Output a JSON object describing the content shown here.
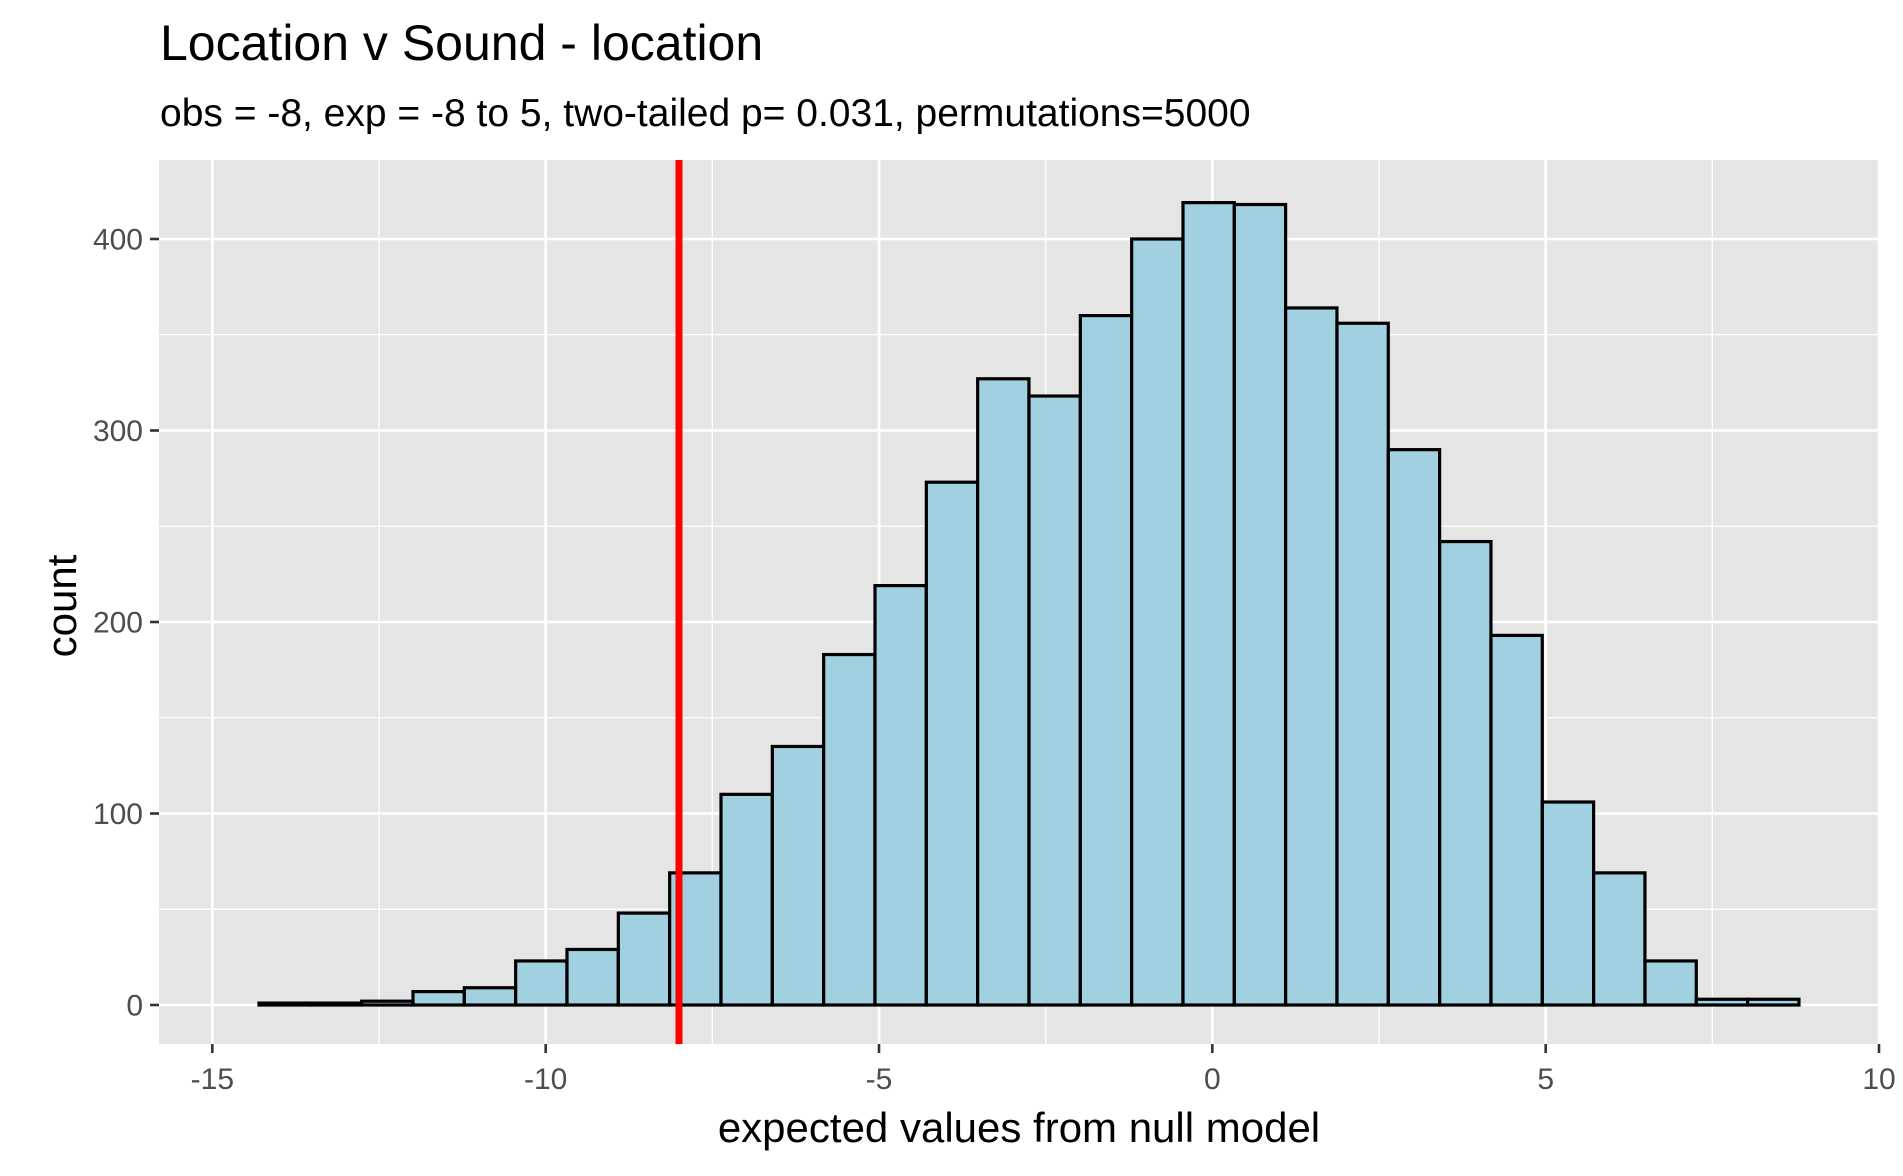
{
  "chart_data": {
    "type": "bar",
    "title": "Location v Sound - location",
    "subtitle": "obs = -8, exp = -8 to 5, two-tailed p= 0.031, permutations=5000",
    "xlabel": "expected values from null model",
    "ylabel": "count",
    "xlim": [
      -15.8,
      10
    ],
    "ylim": [
      0,
      420
    ],
    "x_ticks": [
      -15,
      -10,
      -5,
      0,
      5,
      10
    ],
    "x_tick_labels": [
      "-15",
      "-10",
      "-5",
      "0",
      "5",
      "10"
    ],
    "y_ticks": [
      0,
      100,
      200,
      300,
      400
    ],
    "y_tick_labels": [
      "0",
      "100",
      "200",
      "300",
      "400"
    ],
    "bin_width": 0.7692,
    "bins": [
      {
        "x_start": -14.3,
        "count": 1
      },
      {
        "x_start": -13.53,
        "count": 1
      },
      {
        "x_start": -12.76,
        "count": 2
      },
      {
        "x_start": -11.99,
        "count": 7
      },
      {
        "x_start": -11.22,
        "count": 9
      },
      {
        "x_start": -10.45,
        "count": 23
      },
      {
        "x_start": -9.68,
        "count": 29
      },
      {
        "x_start": -8.91,
        "count": 48
      },
      {
        "x_start": -8.14,
        "count": 69
      },
      {
        "x_start": -7.37,
        "count": 110
      },
      {
        "x_start": -6.6,
        "count": 135
      },
      {
        "x_start": -5.83,
        "count": 183
      },
      {
        "x_start": -5.06,
        "count": 219
      },
      {
        "x_start": -4.29,
        "count": 273
      },
      {
        "x_start": -3.52,
        "count": 327
      },
      {
        "x_start": -2.75,
        "count": 318
      },
      {
        "x_start": -1.98,
        "count": 360
      },
      {
        "x_start": -1.21,
        "count": 400
      },
      {
        "x_start": -0.44,
        "count": 419
      },
      {
        "x_start": 0.33,
        "count": 418
      },
      {
        "x_start": 1.1,
        "count": 364
      },
      {
        "x_start": 1.87,
        "count": 356
      },
      {
        "x_start": 2.64,
        "count": 290
      },
      {
        "x_start": 3.41,
        "count": 242
      },
      {
        "x_start": 4.18,
        "count": 193
      },
      {
        "x_start": 4.95,
        "count": 106
      },
      {
        "x_start": 5.72,
        "count": 69
      },
      {
        "x_start": 6.49,
        "count": 23
      },
      {
        "x_start": 7.26,
        "count": 3
      },
      {
        "x_start": 8.03,
        "count": 3
      }
    ],
    "observed_line": {
      "x": -8,
      "color": "#ff0000"
    },
    "colors": {
      "bar_fill": "#a1d0e1",
      "bar_stroke": "#000000",
      "panel_background": "#e5e5e5",
      "grid": "#ffffff",
      "tick_text": "#4d4d4d"
    },
    "grid": true,
    "legend": "none"
  }
}
